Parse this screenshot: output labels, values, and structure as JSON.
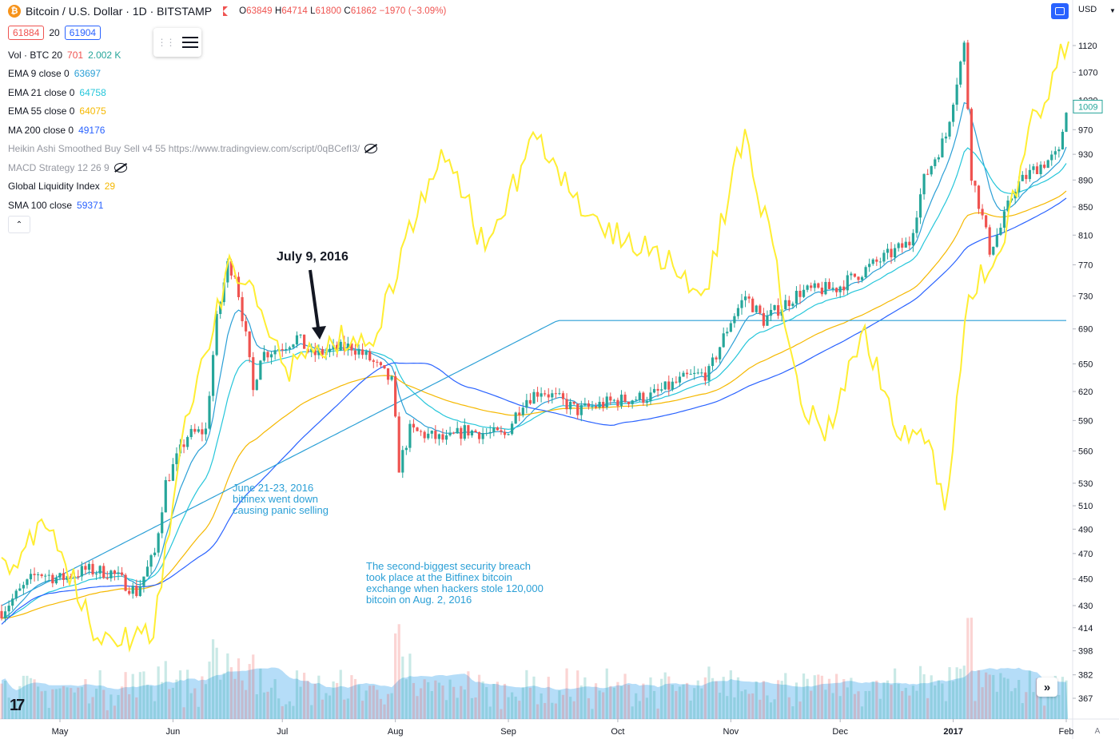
{
  "header": {
    "symbol_icon": "bitcoin-icon",
    "symbol_icon_glyph": "₿",
    "title": "Bitcoin / U.S. Dollar · 1D · BITSTAMP",
    "ohlc": {
      "o_label": "O",
      "o": "63849",
      "h_label": "H",
      "h": "64714",
      "l_label": "L",
      "l": "61800",
      "c_label": "C",
      "c": "61862",
      "change": "−1970 (−3.09%)"
    },
    "bid": "61884",
    "spread": "20",
    "ask": "61904"
  },
  "indicators": [
    {
      "name": "Vol · BTC 20",
      "v1": "701",
      "v2": "2.002 K",
      "v1_color": "#ef5350",
      "v2_color": "#26a69a"
    },
    {
      "name": "EMA 9 close 0",
      "value": "63697",
      "color": "#2a9fd6"
    },
    {
      "name": "EMA 21 close 0",
      "value": "64758",
      "color": "#26c6da"
    },
    {
      "name": "EMA 55 close 0",
      "value": "64075",
      "color": "#f5b800"
    },
    {
      "name": "MA 200 close 0",
      "value": "49176",
      "color": "#2962ff"
    },
    {
      "name": "Heikin Ashi Smoothed Buy Sell v4 55 https://www.tradingview.com/script/0qBCefI3/",
      "hidden": true
    },
    {
      "name": "MACD Strategy 12 26 9",
      "hidden": true
    },
    {
      "name": "Global Liquidity Index",
      "value": "29",
      "color": "#f5b800"
    },
    {
      "name": "SMA 100 close",
      "value": "59371",
      "color": "#2962ff"
    }
  ],
  "toolbar": {
    "currency": "USD",
    "fit_icon": "fit-screen-icon",
    "scroll_icon": "double-chevron-right-icon",
    "scroll_glyph": "»",
    "collapse_icon": "chevron-up-icon",
    "collapse_glyph": "⌃",
    "auto_label": "A",
    "logo": "tradingview-logo"
  },
  "annotations": {
    "date_label": "July 9, 2016",
    "june_note": "June 21-23, 2016\nbitfinex went down\ncausing panic selling",
    "aug_note": "The second-biggest security breach\ntook place at the Bitfinex bitcoin\nexchange when hackers stole 120,000\nbitcoin on Aug. 2, 2016"
  },
  "chart_data": {
    "type": "candlestick",
    "title": "Bitcoin / U.S. Dollar · 1D · BITSTAMP",
    "price_axis": {
      "scale": "log",
      "ticks": [
        1120,
        1070,
        1020,
        970,
        930,
        890,
        850,
        810,
        770,
        730,
        690,
        650,
        620,
        590,
        560,
        530,
        510,
        490,
        470,
        450,
        430,
        414,
        398,
        382,
        367
      ],
      "last_price_label": "1009"
    },
    "time_axis": {
      "start": "2016-04-15",
      "end": "2017-02-01",
      "ticks": [
        "May",
        "Jun",
        "Jul",
        "Aug",
        "Sep",
        "Oct",
        "Nov",
        "Dec",
        "2017",
        "Feb"
      ]
    },
    "price_path": [
      [
        "2016-04-15",
        426
      ],
      [
        "2016-04-25",
        455
      ],
      [
        "2016-05-01",
        450
      ],
      [
        "2016-05-08",
        457
      ],
      [
        "2016-05-15",
        455
      ],
      [
        "2016-05-22",
        440
      ],
      [
        "2016-05-27",
        470
      ],
      [
        "2016-05-30",
        530
      ],
      [
        "2016-06-05",
        575
      ],
      [
        "2016-06-10",
        580
      ],
      [
        "2016-06-13",
        700
      ],
      [
        "2016-06-16",
        770
      ],
      [
        "2016-06-18",
        760
      ],
      [
        "2016-06-21",
        680
      ],
      [
        "2016-06-23",
        620
      ],
      [
        "2016-06-25",
        660
      ],
      [
        "2016-07-01",
        670
      ],
      [
        "2016-07-05",
        680
      ],
      [
        "2016-07-09",
        660
      ],
      [
        "2016-07-15",
        665
      ],
      [
        "2016-07-20",
        670
      ],
      [
        "2016-07-25",
        655
      ],
      [
        "2016-07-31",
        630
      ],
      [
        "2016-08-02",
        545
      ],
      [
        "2016-08-05",
        580
      ],
      [
        "2016-08-15",
        570
      ],
      [
        "2016-08-20",
        580
      ],
      [
        "2016-08-31",
        575
      ],
      [
        "2016-09-05",
        610
      ],
      [
        "2016-09-10",
        622
      ],
      [
        "2016-09-20",
        600
      ],
      [
        "2016-09-30",
        610
      ],
      [
        "2016-10-10",
        615
      ],
      [
        "2016-10-20",
        635
      ],
      [
        "2016-10-26",
        640
      ],
      [
        "2016-11-01",
        700
      ],
      [
        "2016-11-05",
        730
      ],
      [
        "2016-11-10",
        700
      ],
      [
        "2016-11-20",
        735
      ],
      [
        "2016-11-30",
        740
      ],
      [
        "2016-12-10",
        770
      ],
      [
        "2016-12-20",
        800
      ],
      [
        "2016-12-24",
        890
      ],
      [
        "2016-12-30",
        960
      ],
      [
        "2017-01-04",
        1120
      ],
      [
        "2017-01-06",
        900
      ],
      [
        "2017-01-11",
        790
      ],
      [
        "2017-01-14",
        820
      ],
      [
        "2017-01-18",
        880
      ],
      [
        "2017-01-24",
        910
      ],
      [
        "2017-01-30",
        930
      ],
      [
        "2017-02-01",
        1009
      ]
    ],
    "series": [
      {
        "name": "EMA 9 close 0",
        "color": "#2a9fd6"
      },
      {
        "name": "EMA 21 close 0",
        "color": "#26c6da"
      },
      {
        "name": "EMA 55 close 0",
        "color": "#f5b800"
      },
      {
        "name": "MA 200 close 0",
        "color": "#2962ff"
      },
      {
        "name": "SMA 100 close",
        "color": "#2962ff"
      },
      {
        "name": "Global Liquidity Index",
        "color": "#ffee33"
      }
    ],
    "colors": {
      "up": "#26a69a",
      "down": "#ef5350",
      "volume_area": "#5ab4ef"
    }
  }
}
